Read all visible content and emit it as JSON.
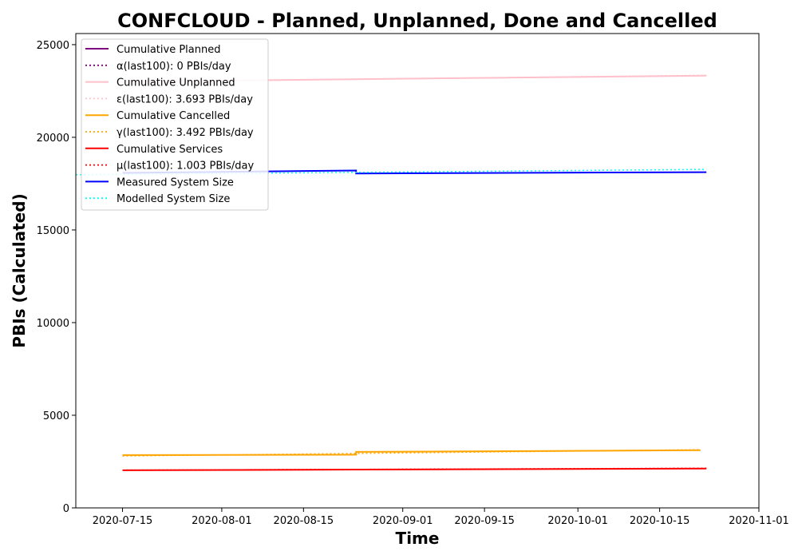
{
  "chart_data": {
    "type": "line",
    "title": "CONFCLOUD - Planned, Unplanned, Done  and Cancelled",
    "xlabel": "Time",
    "ylabel": "PBIs (Calculated)",
    "xlim": [
      "2020-07-07",
      "2020-11-01"
    ],
    "ylim": [
      0,
      25600
    ],
    "x_ticks": [
      "2020-07-15",
      "2020-08-01",
      "2020-08-15",
      "2020-09-01",
      "2020-09-15",
      "2020-10-01",
      "2020-10-15",
      "2020-11-01"
    ],
    "y_ticks": [
      0,
      5000,
      10000,
      15000,
      20000,
      25000
    ],
    "grid": false,
    "legend_position": "top-left",
    "series": [
      {
        "name": "Cumulative Planned",
        "color": "#800080",
        "style": "solid",
        "points": []
      },
      {
        "name": "α(last100): 0 PBIs/day",
        "color": "#800080",
        "style": "dotted",
        "points": []
      },
      {
        "name": "Cumulative Unplanned",
        "color": "#ffc0cb",
        "style": "solid",
        "points": [
          [
            "2020-07-15",
            23000
          ],
          [
            "2020-08-25",
            23140
          ],
          [
            "2020-10-23",
            23330
          ]
        ]
      },
      {
        "name": "ε(last100): 3.693 PBIs/day",
        "color": "#ffc0cb",
        "style": "dotted",
        "points": [
          [
            "2020-07-15",
            22980
          ],
          [
            "2020-10-23",
            23350
          ]
        ]
      },
      {
        "name": "Cumulative Cancelled",
        "color": "#ffa500",
        "style": "solid",
        "points": [
          [
            "2020-07-15",
            2850
          ],
          [
            "2020-08-24",
            2870
          ],
          [
            "2020-08-24",
            3020
          ],
          [
            "2020-10-22",
            3110
          ]
        ]
      },
      {
        "name": "γ(last100): 3.492 PBIs/day",
        "color": "#ffa500",
        "style": "dotted",
        "points": [
          [
            "2020-07-15",
            2800
          ],
          [
            "2020-10-22",
            3140
          ]
        ]
      },
      {
        "name": "Cumulative Services",
        "color": "#ff0000",
        "style": "solid",
        "points": [
          [
            "2020-07-15",
            2030
          ],
          [
            "2020-08-24",
            2070
          ],
          [
            "2020-10-23",
            2120
          ]
        ]
      },
      {
        "name": "μ(last100): 1.003 PBIs/day",
        "color": "#ff0000",
        "style": "dotted",
        "points": [
          [
            "2020-07-15",
            2040
          ],
          [
            "2020-10-23",
            2140
          ]
        ]
      },
      {
        "name": "Measured System Size",
        "color": "#0000ff",
        "style": "solid",
        "points": [
          [
            "2020-07-15",
            18080
          ],
          [
            "2020-08-24",
            18210
          ],
          [
            "2020-08-24",
            18050
          ],
          [
            "2020-10-23",
            18120
          ]
        ]
      },
      {
        "name": "Modelled System Size",
        "color": "#00ffff",
        "style": "dotted",
        "points": [
          [
            "2020-07-07",
            17980
          ],
          [
            "2020-10-23",
            18270
          ]
        ]
      }
    ]
  }
}
